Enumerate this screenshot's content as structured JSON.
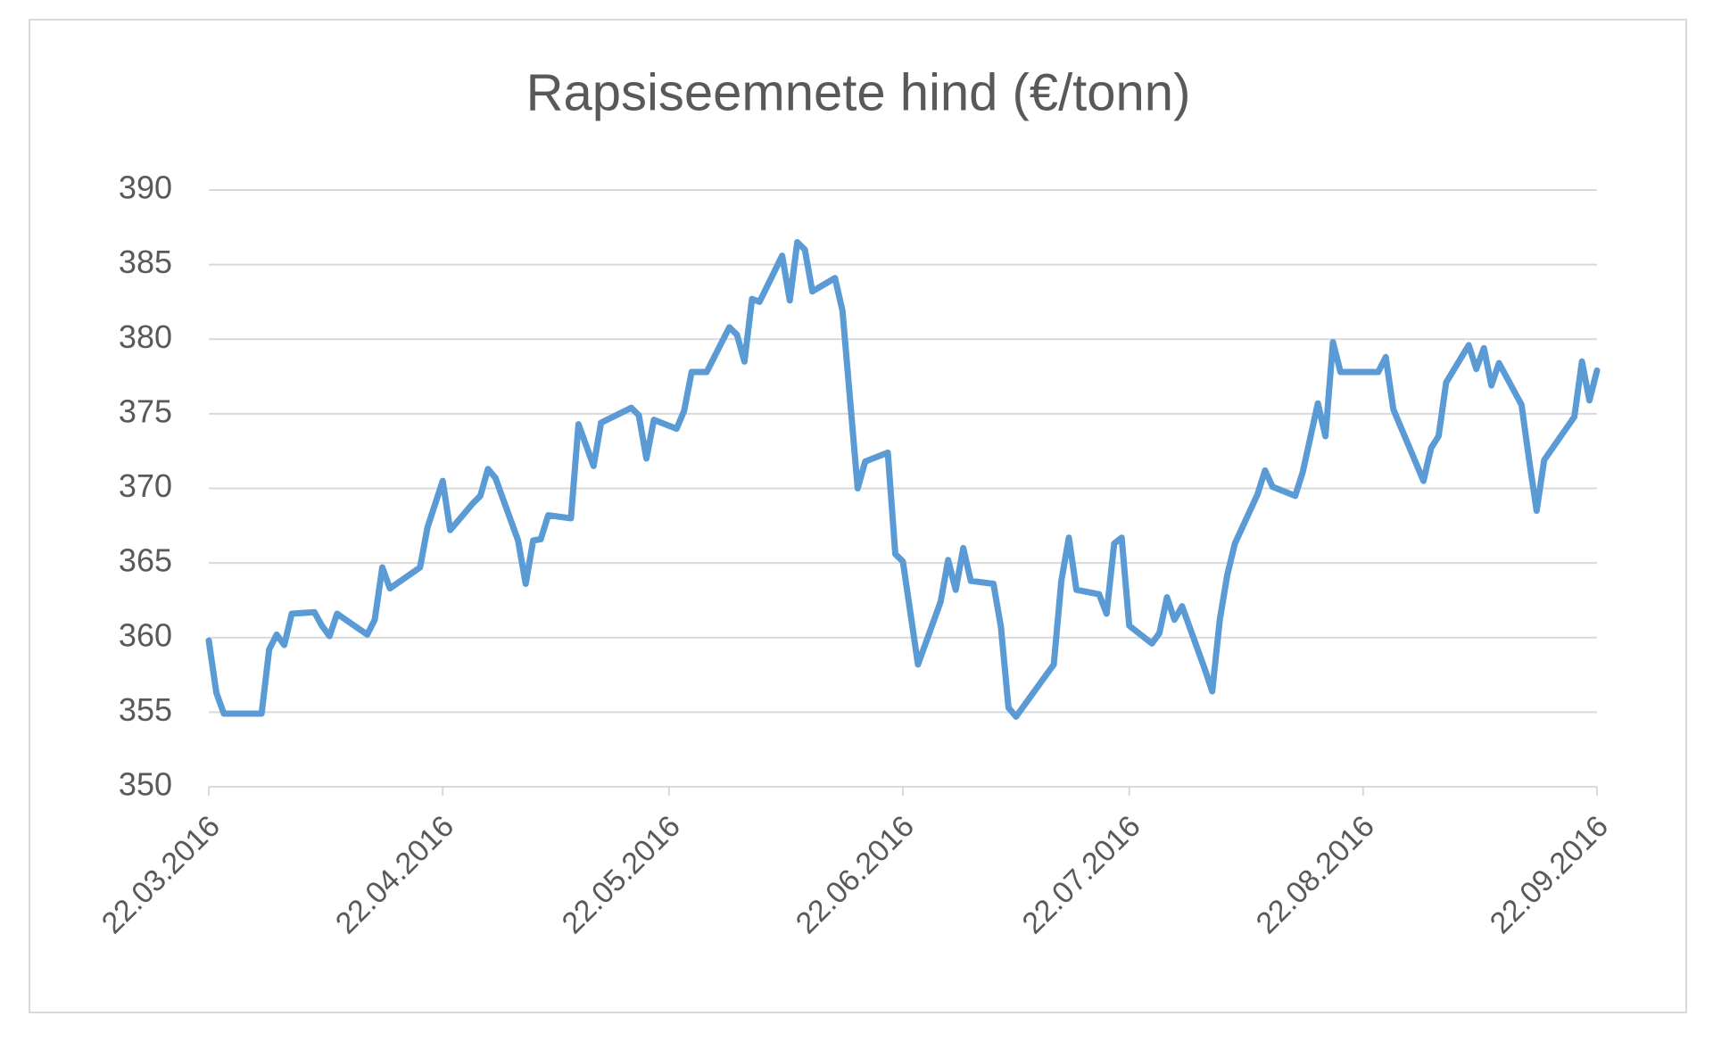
{
  "chart_data": {
    "type": "line",
    "title": "Rapsiseemnete hind (€/tonn)",
    "x": [
      "22.03.2016",
      "23.03.2016",
      "24.03.2016",
      "29.03.2016",
      "30.03.2016",
      "31.03.2016",
      "01.04.2016",
      "02.04.2016",
      "05.04.2016",
      "06.04.2016",
      "07.04.2016",
      "08.04.2016",
      "12.04.2016",
      "13.04.2016",
      "14.04.2016",
      "15.04.2016",
      "19.04.2016",
      "20.04.2016",
      "22.04.2016",
      "23.04.2016",
      "26.04.2016",
      "27.04.2016",
      "28.04.2016",
      "29.04.2016",
      "02.05.2016",
      "03.05.2016",
      "04.05.2016",
      "05.05.2016",
      "06.05.2016",
      "09.05.2016",
      "10.05.2016",
      "12.05.2016",
      "13.05.2016",
      "17.05.2016",
      "18.05.2016",
      "19.05.2016",
      "20.05.2016",
      "23.05.2016",
      "24.05.2016",
      "25.05.2016",
      "27.05.2016",
      "30.05.2016",
      "31.05.2016",
      "01.06.2016",
      "02.06.2016",
      "03.06.2016",
      "06.06.2016",
      "07.06.2016",
      "08.06.2016",
      "09.06.2016",
      "10.06.2016",
      "13.06.2016",
      "14.06.2016",
      "16.06.2016",
      "17.06.2016",
      "20.06.2016",
      "21.06.2016",
      "22.06.2016",
      "24.06.2016",
      "27.06.2016",
      "28.06.2016",
      "29.06.2016",
      "30.06.2016",
      "01.07.2016",
      "04.07.2016",
      "05.07.2016",
      "06.07.2016",
      "07.07.2016",
      "12.07.2016",
      "13.07.2016",
      "14.07.2016",
      "15.07.2016",
      "18.07.2016",
      "19.07.2016",
      "20.07.2016",
      "21.07.2016",
      "22.07.2016",
      "25.07.2016",
      "26.07.2016",
      "27.07.2016",
      "28.07.2016",
      "29.07.2016",
      "01.08.2016",
      "02.08.2016",
      "03.08.2016",
      "04.08.2016",
      "05.08.2016",
      "08.08.2016",
      "09.08.2016",
      "10.08.2016",
      "13.08.2016",
      "14.08.2016",
      "16.08.2016",
      "17.08.2016",
      "18.08.2016",
      "19.08.2016",
      "24.08.2016",
      "25.08.2016",
      "26.08.2016",
      "30.08.2016",
      "31.08.2016",
      "01.09.2016",
      "02.09.2016",
      "05.09.2016",
      "06.09.2016",
      "07.09.2016",
      "08.09.2016",
      "09.09.2016",
      "12.09.2016",
      "13.09.2016",
      "14.09.2016",
      "15.09.2016",
      "19.09.2016",
      "20.09.2016",
      "21.09.2016",
      "22.09.2016"
    ],
    "series": [
      {
        "color": "#5b9bd5",
        "values": [
          359.8,
          356.3,
          354.9,
          354.9,
          359.2,
          360.2,
          359.5,
          361.6,
          361.7,
          360.8,
          360.1,
          361.6,
          360.2,
          361.2,
          364.7,
          363.3,
          364.7,
          367.4,
          370.5,
          367.2,
          369,
          369.5,
          371.3,
          370.7,
          366.5,
          363.6,
          366.5,
          366.6,
          368.2,
          368,
          374.3,
          371.5,
          374.4,
          375.4,
          374.9,
          372,
          374.6,
          374,
          375.2,
          377.8,
          377.8,
          380.8,
          380.3,
          378.5,
          382.7,
          382.5,
          385.6,
          382.6,
          386.5,
          386,
          383.2,
          384.1,
          381.9,
          370,
          371.8,
          372.4,
          365.6,
          365.1,
          358.2,
          362.4,
          365.2,
          363.2,
          366,
          363.8,
          363.6,
          360.7,
          355.3,
          354.7,
          358.2,
          363.8,
          366.7,
          363.2,
          362.9,
          361.6,
          366.3,
          366.7,
          360.8,
          359.6,
          360.3,
          362.7,
          361.2,
          362.1,
          357.9,
          356.4,
          361.2,
          364.2,
          366.3,
          369.6,
          371.2,
          370.1,
          369.5,
          371.1,
          375.7,
          373.5,
          379.8,
          377.8,
          377.8,
          378.8,
          375.3,
          370.5,
          372.7,
          373.5,
          377.1,
          379.6,
          378,
          379.4,
          376.9,
          378.4,
          375.6,
          371.9,
          368.5,
          371.9,
          374.8,
          378.5,
          375.9,
          377.9
        ]
      }
    ],
    "xlim": [
      "22.03.2016",
      "22.09.2016"
    ],
    "xticks": [
      "22.03.2016",
      "22.04.2016",
      "22.05.2016",
      "22.06.2016",
      "22.07.2016",
      "22.08.2016",
      "22.09.2016"
    ],
    "ylim": [
      350,
      390
    ],
    "yticks": [
      350,
      355,
      360,
      365,
      370,
      375,
      380,
      385,
      390
    ],
    "grid": true
  }
}
